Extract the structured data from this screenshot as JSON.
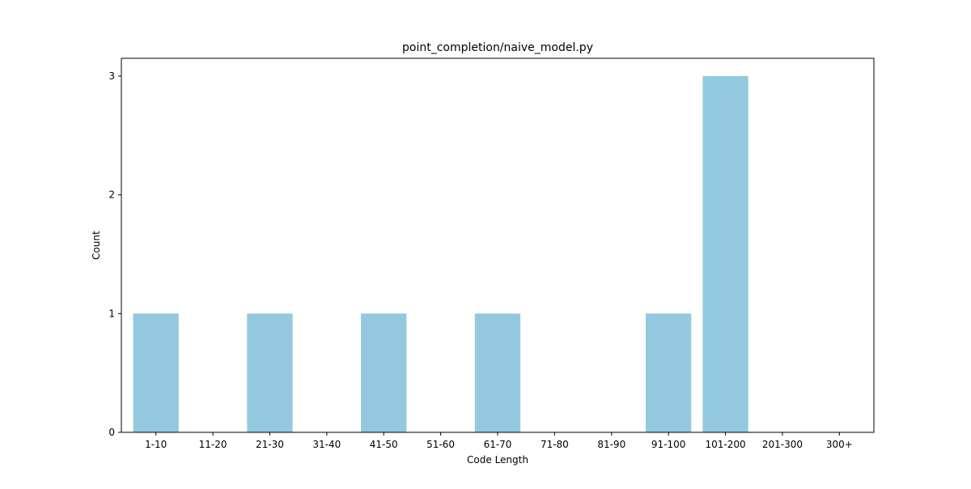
{
  "chart_data": {
    "type": "bar",
    "title": "point_completion/naive_model.py",
    "xlabel": "Code Length",
    "ylabel": "Count",
    "categories": [
      "1-10",
      "11-20",
      "21-30",
      "31-40",
      "41-50",
      "51-60",
      "61-70",
      "71-80",
      "81-90",
      "91-100",
      "101-200",
      "201-300",
      "300+"
    ],
    "values": [
      1,
      0,
      1,
      0,
      1,
      0,
      1,
      0,
      0,
      1,
      3,
      0,
      0
    ],
    "yticks": [
      0,
      1,
      2,
      3
    ],
    "ylim": [
      0,
      3.15
    ],
    "grid": false,
    "colors": {
      "bar": "#92c9df",
      "axis": "#000000"
    }
  }
}
